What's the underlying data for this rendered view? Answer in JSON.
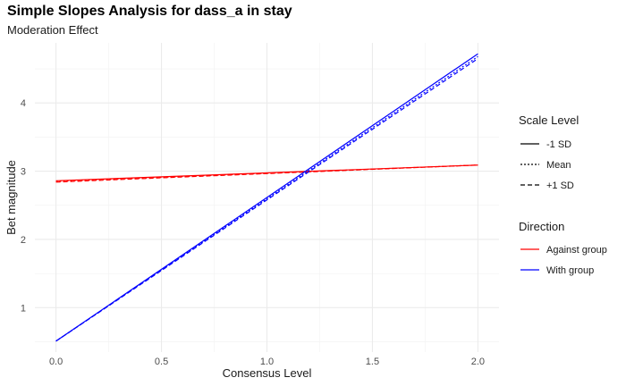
{
  "chart_data": {
    "type": "line",
    "title": "Simple Slopes Analysis for dass_a in stay",
    "subtitle": "Moderation Effect",
    "xlabel": "Consensus Level",
    "ylabel": "Bet magnitude",
    "xlim": [
      -0.1,
      2.1
    ],
    "ylim": [
      0.35,
      4.88
    ],
    "xticks": [
      0.0,
      0.5,
      1.0,
      1.5,
      2.0
    ],
    "xtick_labels": [
      "0.0",
      "0.5",
      "1.0",
      "1.5",
      "2.0"
    ],
    "yticks": [
      1,
      2,
      3,
      4
    ],
    "ytick_labels": [
      "1",
      "2",
      "3",
      "4"
    ],
    "grid": true,
    "legend_position": "right",
    "legends": [
      {
        "title": "Scale Level",
        "entries": [
          {
            "label": "-1 SD",
            "dash": "solid"
          },
          {
            "label": "Mean",
            "dash": "dotted"
          },
          {
            "label": "+1 SD",
            "dash": "dashed"
          }
        ]
      },
      {
        "title": "Direction",
        "entries": [
          {
            "label": "Against group",
            "color": "#ff0000"
          },
          {
            "label": "With group",
            "color": "#0000ff"
          }
        ]
      }
    ],
    "series": [
      {
        "direction": "Against group",
        "scale": "-1 SD",
        "color": "#ff0000",
        "dash": "solid",
        "x": [
          0,
          2
        ],
        "y": [
          2.86,
          3.09
        ]
      },
      {
        "direction": "Against group",
        "scale": "Mean",
        "color": "#ff0000",
        "dash": "dotted",
        "x": [
          0,
          2
        ],
        "y": [
          2.85,
          3.09
        ]
      },
      {
        "direction": "Against group",
        "scale": "+1 SD",
        "color": "#ff0000",
        "dash": "dashed",
        "x": [
          0,
          2
        ],
        "y": [
          2.84,
          3.09
        ]
      },
      {
        "direction": "With group",
        "scale": "-1 SD",
        "color": "#0000ff",
        "dash": "solid",
        "x": [
          0,
          2
        ],
        "y": [
          0.51,
          4.72
        ]
      },
      {
        "direction": "With group",
        "scale": "Mean",
        "color": "#0000ff",
        "dash": "dotted",
        "x": [
          0,
          2
        ],
        "y": [
          0.51,
          4.68
        ]
      },
      {
        "direction": "With group",
        "scale": "+1 SD",
        "color": "#0000ff",
        "dash": "dashed",
        "x": [
          0,
          2
        ],
        "y": [
          0.51,
          4.65
        ]
      }
    ]
  }
}
